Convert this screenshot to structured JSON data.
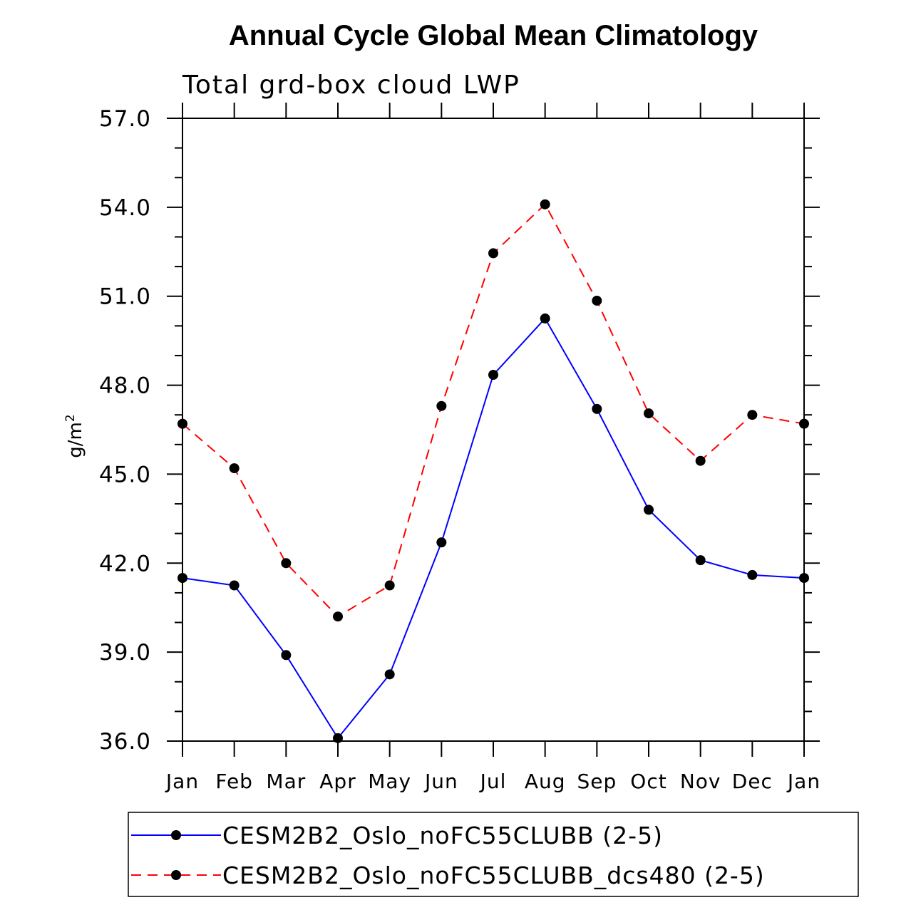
{
  "chart_data": {
    "type": "line",
    "title": "Annual Cycle Global Mean Climatology",
    "subtitle": "Total grd-box cloud LWP",
    "ylabel": "g/m",
    "ylabel_superscript": "2",
    "ylim": [
      36.0,
      57.0
    ],
    "yticks": [
      "36.0",
      "39.0",
      "42.0",
      "45.0",
      "48.0",
      "51.0",
      "54.0",
      "57.0"
    ],
    "categories": [
      "Jan",
      "Feb",
      "Mar",
      "Apr",
      "May",
      "Jun",
      "Jul",
      "Aug",
      "Sep",
      "Oct",
      "Nov",
      "Dec",
      "Jan"
    ],
    "series": [
      {
        "name": "CESM2B2_Oslo_noFC55CLUBB (2-5)",
        "color": "#0000ff",
        "dash": "solid",
        "values": [
          41.5,
          41.25,
          38.9,
          36.1,
          38.25,
          42.7,
          48.35,
          50.25,
          47.2,
          43.8,
          42.1,
          41.6,
          41.5
        ]
      },
      {
        "name": "CESM2B2_Oslo_noFC55CLUBB_dcs480 (2-5)",
        "color": "#ff0000",
        "dash": "dashed",
        "values": [
          46.7,
          45.2,
          42.0,
          40.2,
          41.25,
          47.3,
          52.45,
          54.1,
          50.85,
          47.05,
          45.45,
          47.0,
          46.7
        ]
      }
    ],
    "legend_position": "bottom",
    "marker_color": "#000000"
  }
}
